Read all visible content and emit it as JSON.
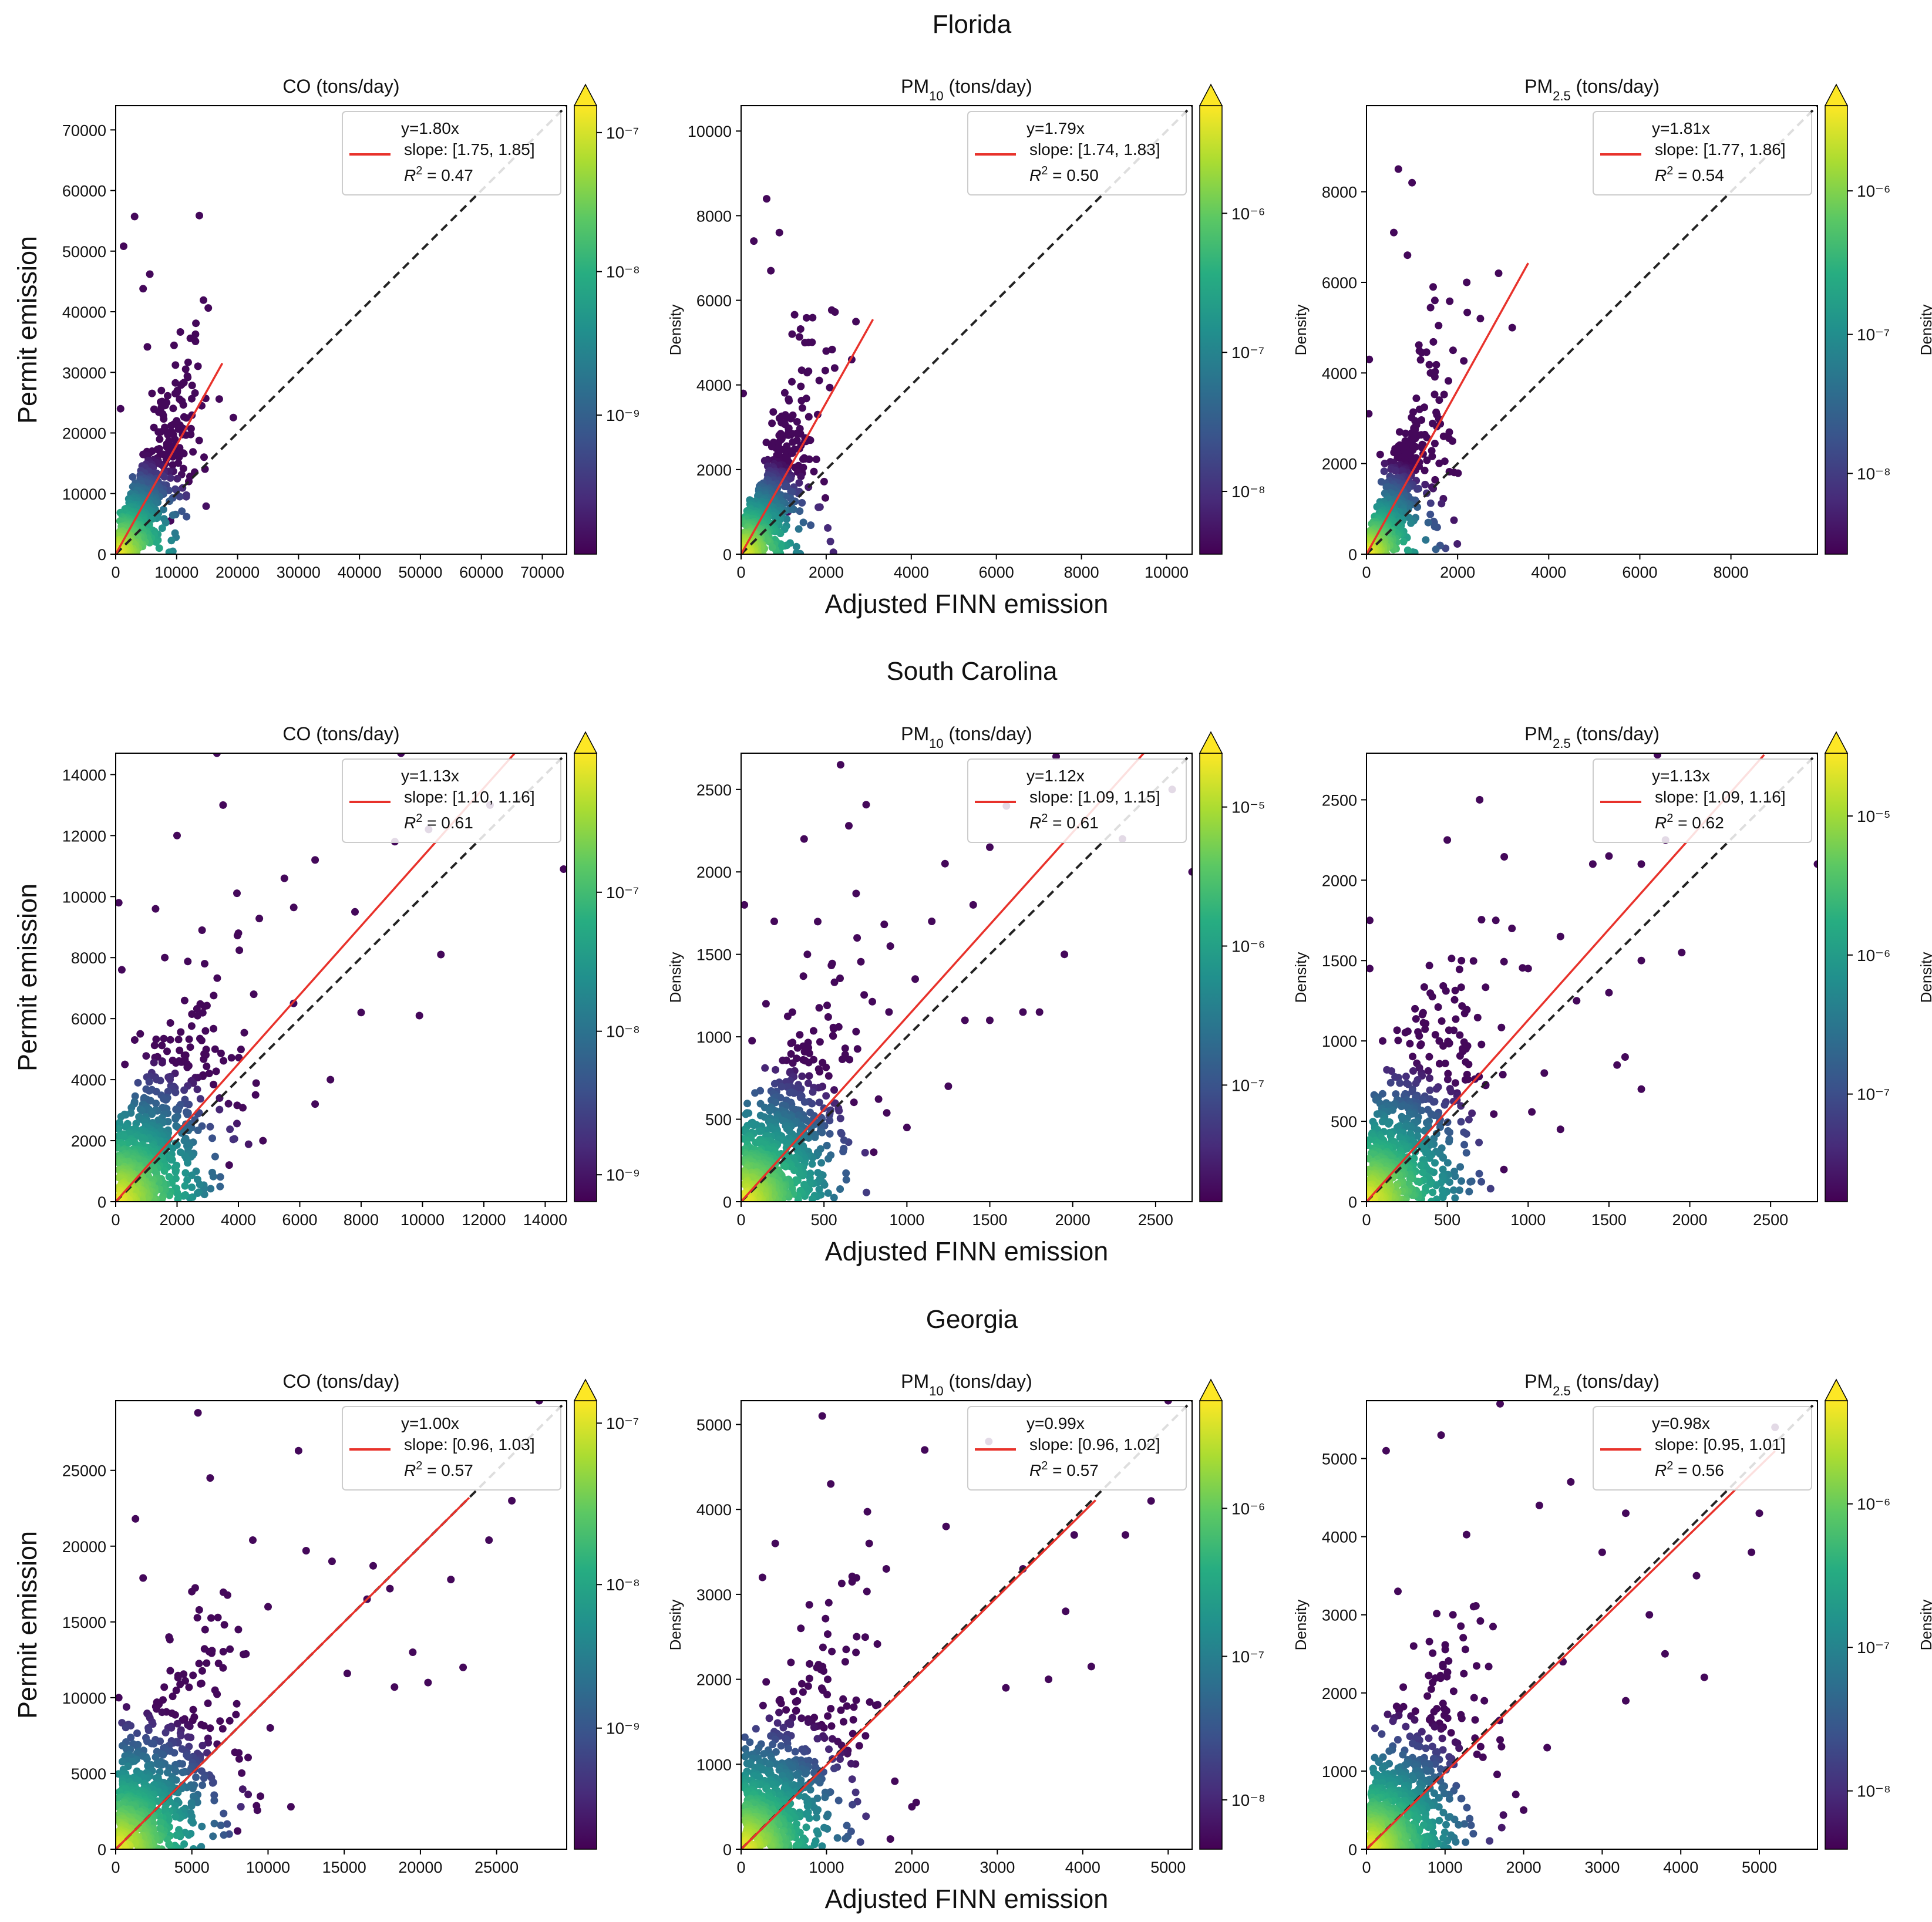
{
  "figure": {
    "ylabel": "Permit emission",
    "xlabel": "Adjusted FINN emission",
    "colorbar_label": "Density"
  },
  "colors": {
    "fit_line": "#e8322b",
    "identity_line": "#222222",
    "colormap": [
      "#440154",
      "#472c7a",
      "#3b518b",
      "#2c718e",
      "#21908d",
      "#27ad81",
      "#5cc863",
      "#aadc32",
      "#fde725"
    ]
  },
  "chart_data": [
    {
      "type": "scatter",
      "state": "Florida",
      "title": "CO (tons/day)",
      "species": "CO",
      "sub": "",
      "xlim": [
        0,
        74000
      ],
      "ylim": [
        0,
        74000
      ],
      "xticks": [
        0,
        10000,
        20000,
        30000,
        40000,
        50000,
        60000,
        70000
      ],
      "yticks": [
        0,
        10000,
        20000,
        30000,
        40000,
        50000,
        60000,
        70000
      ],
      "fit_label": "y=1.80x",
      "slope_text": "slope: [1.75, 1.85]",
      "r2_label": "R",
      "r2_value": " = 0.47",
      "slope": 1.8,
      "fit_xmax": 17500,
      "cb_ticks": [
        "10⁻⁷",
        "10⁻⁸",
        "10⁻⁹"
      ],
      "cb_fracs": [
        0.94,
        0.63,
        0.31
      ],
      "scale": 8000,
      "cloud": 0.25,
      "spread": 0.45,
      "outliers": [
        [
          800,
          24000
        ],
        [
          1300,
          50800
        ],
        [
          3100,
          55700
        ],
        [
          4500,
          43800
        ],
        [
          5200,
          34200
        ],
        [
          5600,
          46200
        ],
        [
          7500,
          27000
        ],
        [
          11200,
          28300
        ],
        [
          13500,
          31000
        ],
        [
          17000,
          25600
        ],
        [
          6000,
          3000
        ],
        [
          9000,
          5500
        ],
        [
          3500,
          2000
        ],
        [
          12000,
          12000
        ],
        [
          14500,
          16000
        ],
        [
          10000,
          22000
        ],
        [
          8500,
          20000
        ]
      ]
    },
    {
      "type": "scatter",
      "state": "Florida",
      "title": "PM (tons/day)",
      "species": "PM",
      "sub": "10",
      "xlim": [
        0,
        10600
      ],
      "ylim": [
        0,
        10600
      ],
      "xticks": [
        0,
        2000,
        4000,
        6000,
        8000,
        10000
      ],
      "yticks": [
        0,
        2000,
        4000,
        6000,
        8000,
        10000
      ],
      "fit_label": "y=1.79x",
      "slope_text": "slope: [1.74, 1.83]",
      "r2_label": "R",
      "r2_value": " = 0.50",
      "slope": 1.79,
      "fit_xmax": 3100,
      "cb_ticks": [
        "10⁻⁶",
        "10⁻⁷",
        "10⁻⁸"
      ],
      "cb_fracs": [
        0.76,
        0.45,
        0.14
      ],
      "scale": 1100,
      "cloud": 0.25,
      "spread": 0.45,
      "outliers": [
        [
          300,
          7400
        ],
        [
          600,
          8400
        ],
        [
          700,
          6700
        ],
        [
          900,
          7600
        ],
        [
          1200,
          5200
        ],
        [
          1500,
          5000
        ],
        [
          2000,
          4800
        ],
        [
          2200,
          4400
        ],
        [
          2600,
          4600
        ],
        [
          50,
          3800
        ],
        [
          1800,
          3300
        ],
        [
          400,
          300
        ],
        [
          1100,
          1000
        ]
      ]
    },
    {
      "type": "scatter",
      "state": "Florida",
      "title": "PM (tons/day)",
      "species": "PM",
      "sub": "2.5",
      "xlim": [
        0,
        9900
      ],
      "ylim": [
        0,
        9900
      ],
      "xticks": [
        0,
        2000,
        4000,
        6000,
        8000
      ],
      "yticks": [
        0,
        2000,
        4000,
        6000,
        8000
      ],
      "fit_label": "y=1.81x",
      "slope_text": "slope: [1.77, 1.86]",
      "r2_label": "R",
      "r2_value": " = 0.54",
      "slope": 1.81,
      "fit_xmax": 3550,
      "cb_ticks": [
        "10⁻⁶",
        "10⁻⁷",
        "10⁻⁸"
      ],
      "cb_fracs": [
        0.81,
        0.49,
        0.18
      ],
      "scale": 1000,
      "cloud": 0.25,
      "spread": 0.45,
      "outliers": [
        [
          60,
          4300
        ],
        [
          600,
          7100
        ],
        [
          700,
          8500
        ],
        [
          1000,
          8200
        ],
        [
          900,
          6600
        ],
        [
          1500,
          5600
        ],
        [
          2200,
          6000
        ],
        [
          2900,
          6200
        ],
        [
          3200,
          5000
        ],
        [
          2500,
          5200
        ],
        [
          1900,
          4500
        ],
        [
          50,
          3100
        ],
        [
          300,
          2200
        ]
      ]
    },
    {
      "type": "scatter",
      "state": "South Carolina",
      "title": "CO (tons/day)",
      "species": "CO",
      "sub": "",
      "xlim": [
        0,
        14700
      ],
      "ylim": [
        0,
        14700
      ],
      "xticks": [
        0,
        2000,
        4000,
        6000,
        8000,
        10000,
        12000,
        14000
      ],
      "yticks": [
        0,
        2000,
        4000,
        6000,
        8000,
        10000,
        12000,
        14000
      ],
      "fit_label": "y=1.13x",
      "slope_text": "slope: [1.10, 1.16]",
      "r2_label": "R",
      "r2_value": " = 0.61",
      "slope": 1.13,
      "fit_xmax": 13000,
      "cb_ticks": [
        "10⁻⁷",
        "10⁻⁸",
        "10⁻⁹"
      ],
      "cb_fracs": [
        0.69,
        0.38,
        0.06
      ],
      "scale": 2300,
      "cloud": 0.55,
      "spread": 0.7,
      "outliers": [
        [
          100,
          9800
        ],
        [
          200,
          7600
        ],
        [
          1300,
          9600
        ],
        [
          2000,
          12000
        ],
        [
          3300,
          14700
        ],
        [
          3500,
          13000
        ],
        [
          4000,
          8800
        ],
        [
          5500,
          10600
        ],
        [
          6500,
          11200
        ],
        [
          7800,
          9500
        ],
        [
          9300,
          14700
        ],
        [
          9100,
          11800
        ],
        [
          10200,
          12200
        ],
        [
          10600,
          8100
        ],
        [
          9900,
          6100
        ],
        [
          14600,
          10900
        ],
        [
          12200,
          13000
        ],
        [
          8000,
          6200
        ],
        [
          7000,
          4000
        ],
        [
          6500,
          3200
        ],
        [
          5800,
          6500
        ],
        [
          3700,
          1200
        ],
        [
          4800,
          2000
        ],
        [
          4500,
          6800
        ],
        [
          2900,
          7800
        ],
        [
          1600,
          8000
        ],
        [
          800,
          5500
        ],
        [
          300,
          4500
        ]
      ]
    },
    {
      "type": "scatter",
      "state": "South Carolina",
      "title": "PM (tons/day)",
      "species": "PM",
      "sub": "10",
      "xlim": [
        0,
        2720
      ],
      "ylim": [
        0,
        2720
      ],
      "xticks": [
        0,
        500,
        1000,
        1500,
        2000,
        2500
      ],
      "yticks": [
        0,
        500,
        1000,
        1500,
        2000,
        2500
      ],
      "fit_label": "y=1.12x",
      "slope_text": "slope: [1.09, 1.15]",
      "r2_label": "R",
      "r2_value": " = 0.61",
      "slope": 1.12,
      "fit_xmax": 2450,
      "cb_ticks": [
        "10⁻⁵",
        "10⁻⁶",
        "10⁻⁷"
      ],
      "cb_fracs": [
        0.88,
        0.57,
        0.26
      ],
      "scale": 420,
      "cloud": 0.55,
      "spread": 0.7,
      "outliers": [
        [
          20,
          1800
        ],
        [
          200,
          1700
        ],
        [
          380,
          2200
        ],
        [
          600,
          2650
        ],
        [
          650,
          2280
        ],
        [
          700,
          1600
        ],
        [
          900,
          1550
        ],
        [
          1150,
          1700
        ],
        [
          1230,
          2050
        ],
        [
          1400,
          1800
        ],
        [
          1500,
          2150
        ],
        [
          1600,
          2400
        ],
        [
          1900,
          2700
        ],
        [
          2600,
          2500
        ],
        [
          2720,
          2000
        ],
        [
          1950,
          1500
        ],
        [
          1800,
          1150
        ],
        [
          1700,
          1150
        ],
        [
          1500,
          1100
        ],
        [
          1250,
          700
        ],
        [
          1000,
          450
        ],
        [
          800,
          300
        ],
        [
          1350,
          1100
        ],
        [
          1050,
          1350
        ],
        [
          400,
          1500
        ],
        [
          150,
          1200
        ],
        [
          2300,
          2200
        ]
      ]
    },
    {
      "type": "scatter",
      "state": "South Carolina",
      "title": "PM (tons/day)",
      "species": "PM",
      "sub": "2.5",
      "xlim": [
        0,
        2790
      ],
      "ylim": [
        0,
        2790
      ],
      "xticks": [
        0,
        500,
        1000,
        1500,
        2000,
        2500
      ],
      "yticks": [
        0,
        500,
        1000,
        1500,
        2000,
        2500
      ],
      "fit_label": "y=1.13x",
      "slope_text": "slope: [1.09, 1.16]",
      "r2_label": "R",
      "r2_value": " = 0.62",
      "slope": 1.13,
      "fit_xmax": 2460,
      "cb_ticks": [
        "10⁻⁵",
        "10⁻⁶",
        "10⁻⁷"
      ],
      "cb_fracs": [
        0.86,
        0.55,
        0.24
      ],
      "scale": 430,
      "cloud": 0.55,
      "spread": 0.7,
      "outliers": [
        [
          20,
          1750
        ],
        [
          20,
          1450
        ],
        [
          500,
          2250
        ],
        [
          700,
          2500
        ],
        [
          800,
          1750
        ],
        [
          900,
          1700
        ],
        [
          1000,
          1450
        ],
        [
          1200,
          1650
        ],
        [
          1400,
          2100
        ],
        [
          1500,
          2150
        ],
        [
          1700,
          2100
        ],
        [
          1800,
          2780
        ],
        [
          1850,
          2250
        ],
        [
          2790,
          2100
        ],
        [
          1950,
          1550
        ],
        [
          1700,
          1500
        ],
        [
          1500,
          1300
        ],
        [
          1550,
          850
        ],
        [
          1700,
          700
        ],
        [
          1600,
          900
        ],
        [
          1200,
          450
        ],
        [
          850,
          200
        ],
        [
          1300,
          1250
        ],
        [
          1100,
          800
        ],
        [
          300,
          1200
        ],
        [
          100,
          1000
        ]
      ]
    },
    {
      "type": "scatter",
      "state": "Georgia",
      "title": "CO (tons/day)",
      "species": "CO",
      "sub": "",
      "xlim": [
        0,
        29600
      ],
      "ylim": [
        0,
        29600
      ],
      "xticks": [
        0,
        5000,
        10000,
        15000,
        20000,
        25000
      ],
      "yticks": [
        0,
        5000,
        10000,
        15000,
        20000,
        25000
      ],
      "fit_label": "y=1.00x",
      "slope_text": "slope: [0.96, 1.03]",
      "r2_label": "R",
      "r2_value": " = 0.57",
      "slope": 1.0,
      "fit_xmax": 23200,
      "cb_ticks": [
        "10⁻⁷",
        "10⁻⁸",
        "10⁻⁹"
      ],
      "cb_fracs": [
        0.95,
        0.59,
        0.27
      ],
      "scale": 4500,
      "cloud": 0.6,
      "spread": 0.75,
      "outliers": [
        [
          1300,
          21800
        ],
        [
          1800,
          17900
        ],
        [
          5400,
          28800
        ],
        [
          6200,
          24500
        ],
        [
          9000,
          20400
        ],
        [
          12000,
          26300
        ],
        [
          12500,
          19700
        ],
        [
          14200,
          19000
        ],
        [
          16500,
          16500
        ],
        [
          16900,
          18700
        ],
        [
          18000,
          17200
        ],
        [
          19500,
          13000
        ],
        [
          20500,
          11000
        ],
        [
          22000,
          17800
        ],
        [
          22800,
          12000
        ],
        [
          26000,
          23000
        ],
        [
          27800,
          29600
        ],
        [
          24500,
          20400
        ],
        [
          18300,
          10700
        ],
        [
          15200,
          11600
        ],
        [
          11500,
          2800
        ],
        [
          9500,
          3500
        ],
        [
          8000,
          1200
        ],
        [
          10000,
          16000
        ],
        [
          7500,
          13200
        ],
        [
          5000,
          17000
        ],
        [
          3500,
          14000
        ],
        [
          200,
          10000
        ]
      ]
    },
    {
      "type": "scatter",
      "state": "Georgia",
      "title": "PM (tons/day)",
      "species": "PM",
      "sub": "10",
      "xlim": [
        0,
        5280
      ],
      "ylim": [
        0,
        5280
      ],
      "xticks": [
        0,
        1000,
        2000,
        3000,
        4000,
        5000
      ],
      "yticks": [
        0,
        1000,
        2000,
        3000,
        4000,
        5000
      ],
      "fit_label": "y=0.99x",
      "slope_text": "slope: [0.96, 1.02]",
      "r2_label": "R",
      "r2_value": " = 0.57",
      "slope": 0.99,
      "fit_xmax": 4150,
      "cb_ticks": [
        "10⁻⁶",
        "10⁻⁷",
        "10⁻⁸"
      ],
      "cb_fracs": [
        0.76,
        0.43,
        0.11
      ],
      "scale": 800,
      "cloud": 0.6,
      "spread": 0.75,
      "outliers": [
        [
          250,
          3200
        ],
        [
          400,
          3600
        ],
        [
          950,
          5100
        ],
        [
          1050,
          4300
        ],
        [
          1500,
          3600
        ],
        [
          1700,
          3300
        ],
        [
          2150,
          4700
        ],
        [
          2400,
          3800
        ],
        [
          2900,
          4800
        ],
        [
          3300,
          3300
        ],
        [
          3800,
          2800
        ],
        [
          3900,
          3700
        ],
        [
          4100,
          2150
        ],
        [
          4500,
          3700
        ],
        [
          4800,
          4100
        ],
        [
          5000,
          5280
        ],
        [
          3600,
          2000
        ],
        [
          3100,
          1900
        ],
        [
          2050,
          550
        ],
        [
          2000,
          500
        ],
        [
          1800,
          800
        ],
        [
          1600,
          1700
        ],
        [
          1200,
          1500
        ],
        [
          700,
          2600
        ]
      ]
    },
    {
      "type": "scatter",
      "state": "Georgia",
      "title": "PM (tons/day)",
      "species": "PM",
      "sub": "2.5",
      "xlim": [
        0,
        5740
      ],
      "ylim": [
        0,
        5740
      ],
      "xticks": [
        0,
        1000,
        2000,
        3000,
        4000,
        5000
      ],
      "yticks": [
        0,
        1000,
        2000,
        3000,
        4000,
        5000
      ],
      "fit_label": "y=0.98x",
      "slope_text": "slope: [0.95, 1.01]",
      "r2_label": "R",
      "r2_value": " = 0.56",
      "slope": 0.98,
      "fit_xmax": 5200,
      "cb_ticks": [
        "10⁻⁶",
        "10⁻⁷",
        "10⁻⁸"
      ],
      "cb_fracs": [
        0.77,
        0.45,
        0.13
      ],
      "scale": 850,
      "cloud": 0.6,
      "spread": 0.75,
      "outliers": [
        [
          250,
          5100
        ],
        [
          400,
          3300
        ],
        [
          950,
          5300
        ],
        [
          1700,
          5700
        ],
        [
          2200,
          4400
        ],
        [
          2600,
          4700
        ],
        [
          3000,
          3800
        ],
        [
          3300,
          4300
        ],
        [
          3600,
          3000
        ],
        [
          3800,
          2500
        ],
        [
          4200,
          3500
        ],
        [
          4300,
          2200
        ],
        [
          4900,
          3800
        ],
        [
          5000,
          4300
        ],
        [
          5200,
          5400
        ],
        [
          3300,
          1900
        ],
        [
          2500,
          2400
        ],
        [
          2000,
          500
        ],
        [
          1900,
          700
        ],
        [
          1700,
          1400
        ],
        [
          1500,
          1900
        ],
        [
          1100,
          3000
        ],
        [
          600,
          2600
        ],
        [
          2300,
          1300
        ]
      ]
    }
  ]
}
